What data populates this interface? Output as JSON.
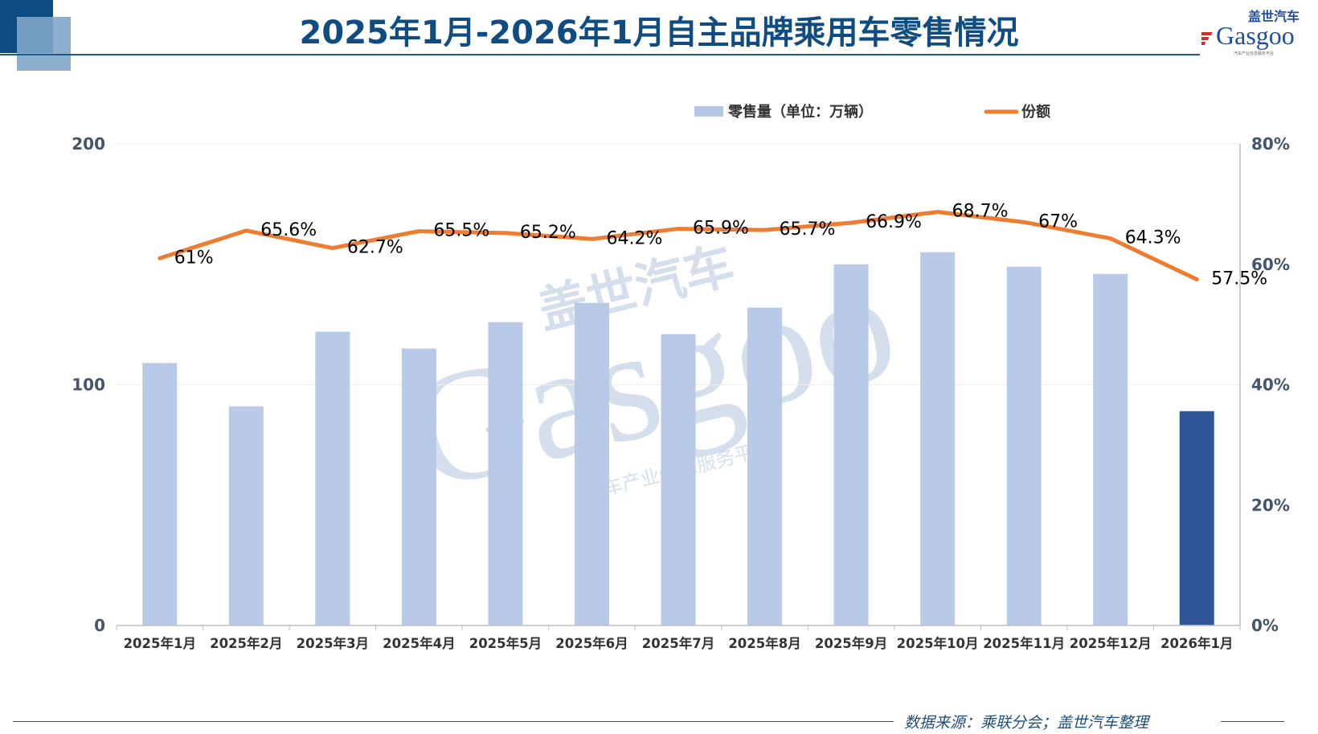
{
  "header": {
    "title": "2025年1月-2026年1月自主品牌乘用车零售情况"
  },
  "logo": {
    "cn": "盖世汽车",
    "en": "Gasgoo",
    "tagline": "汽车产业信息服务平台"
  },
  "footer": {
    "source": "数据来源：乘联分会；盖世汽车整理"
  },
  "watermark": {
    "cn": "盖世汽车",
    "en": "Gasgoo",
    "tagline": "汽车产业信息服务平台"
  },
  "colors": {
    "bar": "#b4c7e7",
    "bar_highlight": "#2f5597",
    "line": "#ed7d31",
    "title": "#0f4c81"
  },
  "chart_data": {
    "type": "bar+line",
    "categories": [
      "2025年1月",
      "2025年2月",
      "2025年3月",
      "2025年4月",
      "2025年5月",
      "2025年6月",
      "2025年7月",
      "2025年8月",
      "2025年9月",
      "2025年10月",
      "2025年11月",
      "2025年12月",
      "2026年1月"
    ],
    "series": [
      {
        "name": "零售量（单位：万辆）",
        "type": "bar",
        "axis": "left",
        "values": [
          109,
          91,
          122,
          115,
          126,
          134,
          121,
          132,
          150,
          155,
          149,
          146,
          89
        ],
        "highlight_last": true
      },
      {
        "name": "份额",
        "type": "line",
        "axis": "right",
        "values": [
          61,
          65.6,
          62.7,
          65.5,
          65.2,
          64.2,
          65.9,
          65.7,
          66.9,
          68.7,
          67,
          64.3,
          57.5
        ],
        "labels": [
          "61%",
          "65.6%",
          "62.7%",
          "65.5%",
          "65.2%",
          "64.2%",
          "65.9%",
          "65.7%",
          "66.9%",
          "68.7%",
          "67%",
          "64.3%",
          "57.5%"
        ]
      }
    ],
    "y_left": {
      "range": [
        0,
        200
      ],
      "ticks": [
        "0",
        "100",
        "200"
      ]
    },
    "y_right": {
      "range": [
        0,
        80
      ],
      "ticks": [
        "0%",
        "20%",
        "40%",
        "60%",
        "80%"
      ]
    },
    "grid": true,
    "legend": "top-right"
  }
}
